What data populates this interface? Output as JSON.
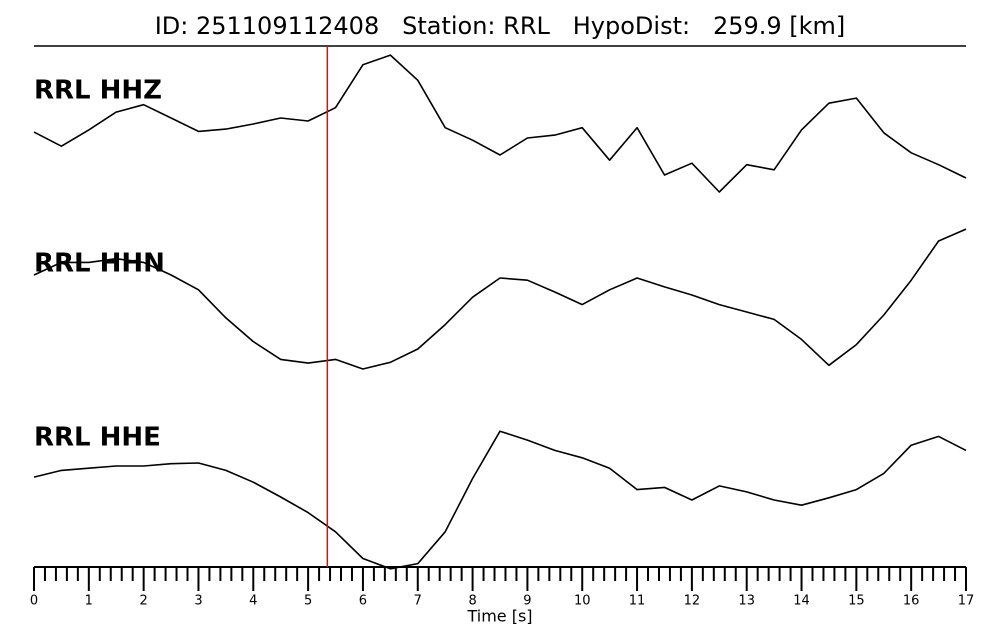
{
  "chart_data": {
    "type": "line",
    "title": "ID: 251109112408   Station: RRL   HypoDist:   259.9 [km]",
    "xlabel": "Time [s]",
    "xlim": [
      0,
      17
    ],
    "xticks": [
      0,
      1,
      2,
      3,
      4,
      5,
      6,
      7,
      8,
      9,
      10,
      11,
      12,
      13,
      14,
      15,
      16,
      17
    ],
    "xminorticks": [
      0.2,
      0.4,
      0.6,
      0.8,
      1.2,
      1.4,
      1.6,
      1.8,
      2.2,
      2.4,
      2.6,
      2.8,
      3.2,
      3.4,
      3.6,
      3.8,
      4.2,
      4.4,
      4.6,
      4.8,
      5.2,
      5.4,
      5.6,
      5.8,
      6.2,
      6.4,
      6.6,
      6.8,
      7.2,
      7.4,
      7.6,
      7.8,
      8.2,
      8.4,
      8.6,
      8.8,
      9.2,
      9.4,
      9.6,
      9.8,
      10.2,
      10.4,
      10.6,
      10.8,
      11.2,
      11.4,
      11.6,
      11.8,
      12.2,
      12.4,
      12.6,
      12.8,
      13.2,
      13.4,
      13.6,
      13.8,
      14.2,
      14.4,
      14.6,
      14.8,
      15.2,
      15.4,
      15.6,
      15.8,
      16.2,
      16.4,
      16.6,
      16.8
    ],
    "ylim": [
      -1,
      1
    ],
    "label_color": "#4e9a06",
    "marker": {
      "x": 5.35,
      "color": "#ff0000"
    },
    "x": [
      0,
      0.5,
      1,
      1.5,
      2,
      2.5,
      3,
      3.5,
      4,
      4.5,
      5,
      5.5,
      6,
      6.5,
      7,
      7.5,
      8,
      8.5,
      9,
      9.5,
      10,
      10.5,
      11,
      11.5,
      12,
      12.5,
      13,
      13.5,
      14,
      14.5,
      15,
      15.5,
      16,
      16.5,
      17
    ],
    "series": [
      {
        "name": "RRL HHZ",
        "color": "#000000",
        "values": [
          -0.15,
          -0.34,
          -0.12,
          0.12,
          0.22,
          0.04,
          -0.14,
          -0.11,
          -0.04,
          0.04,
          0,
          0.18,
          0.76,
          0.89,
          0.55,
          -0.09,
          -0.26,
          -0.46,
          -0.23,
          -0.19,
          -0.09,
          -0.53,
          -0.09,
          -0.73,
          -0.57,
          -0.96,
          -0.59,
          -0.66,
          -0.12,
          0.24,
          0.31,
          -0.16,
          -0.43,
          -0.59,
          -0.77
        ]
      },
      {
        "name": "RRL HHN",
        "color": "#000000",
        "values": [
          0.27,
          0.44,
          0.44,
          0.49,
          0.44,
          0.27,
          0.07,
          -0.31,
          -0.63,
          -0.87,
          -0.92,
          -0.87,
          -1.0,
          -0.91,
          -0.73,
          -0.4,
          -0.03,
          0.23,
          0.2,
          0.04,
          -0.13,
          0.07,
          0.23,
          0.11,
          0,
          -0.13,
          -0.23,
          -0.33,
          -0.6,
          -0.95,
          -0.67,
          -0.27,
          0.2,
          0.73,
          0.89
        ]
      },
      {
        "name": "RRL HHE",
        "color": "#000000",
        "values": [
          0.31,
          0.4,
          0.43,
          0.46,
          0.46,
          0.49,
          0.5,
          0.4,
          0.24,
          0.04,
          -0.17,
          -0.43,
          -0.79,
          -0.93,
          -0.86,
          -0.43,
          0.29,
          0.93,
          0.81,
          0.67,
          0.57,
          0.43,
          0.14,
          0.17,
          0,
          0.19,
          0.11,
          0,
          -0.07,
          0.03,
          0.14,
          0.36,
          0.74,
          0.86,
          0.67
        ]
      }
    ]
  }
}
